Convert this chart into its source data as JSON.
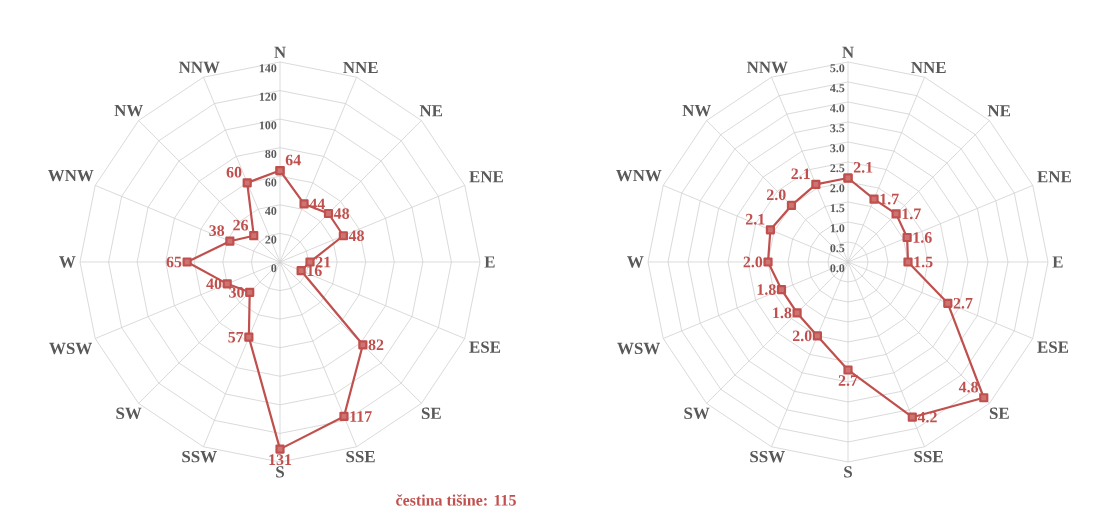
{
  "chart_data": [
    {
      "type": "radar",
      "categories": [
        "N",
        "NNE",
        "NE",
        "ENE",
        "E",
        "ESE",
        "SE",
        "SSE",
        "S",
        "SSW",
        "SW",
        "WSW",
        "W",
        "WNW",
        "NW",
        "NNW"
      ],
      "series": [
        {
          "color": "#c0504d",
          "values": [
            64,
            44,
            48,
            48,
            21,
            16,
            82,
            117,
            131,
            57,
            30,
            40,
            65,
            38,
            26,
            60
          ]
        }
      ],
      "ylim": [
        0,
        140
      ],
      "yticks": [
        0,
        20,
        40,
        60,
        80,
        100,
        120,
        140
      ],
      "grid": true,
      "marker": "square",
      "line_style": "solid",
      "data_labels": true,
      "annotations": [
        "čestina tišine: 115"
      ]
    },
    {
      "type": "radar",
      "categories": [
        "N",
        "NNE",
        "NE",
        "ENE",
        "E",
        "ESE",
        "SE",
        "SSE",
        "S",
        "SSW",
        "SW",
        "WSW",
        "W",
        "WNW",
        "NW",
        "NNW"
      ],
      "series": [
        {
          "color": "#c0504d",
          "values": [
            2.1,
            1.7,
            1.7,
            1.6,
            1.5,
            2.7,
            4.8,
            4.2,
            2.7,
            2.0,
            1.8,
            1.8,
            2.0,
            2.1,
            2.0,
            2.1
          ],
          "value_labels": [
            "2.1",
            "1.7",
            "1.7",
            "1.6",
            "1.5",
            "2.7",
            "4.8",
            "4.2",
            "2.7",
            "2.0",
            "1.8",
            "1.8",
            "2.0",
            "2.1",
            "2.0",
            "2.1"
          ]
        }
      ],
      "ylim": [
        0,
        5
      ],
      "yticks": [
        {
          "value": 0,
          "label": "0.0"
        },
        {
          "value": 0.5,
          "label": "0.5"
        },
        {
          "value": 1,
          "label": "1.0"
        },
        {
          "value": 1.5,
          "label": "1.5"
        },
        {
          "value": 2,
          "label": "2.0"
        },
        {
          "value": 2.5,
          "label": "2.5"
        },
        {
          "value": 3,
          "label": "3.0"
        },
        {
          "value": 3.5,
          "label": "3.5"
        },
        {
          "value": 4,
          "label": "4.0"
        },
        {
          "value": 4.5,
          "label": "4.5"
        },
        {
          "value": 5,
          "label": "5.0"
        }
      ],
      "grid": true,
      "marker": "square",
      "line_style": "solid"
    }
  ]
}
